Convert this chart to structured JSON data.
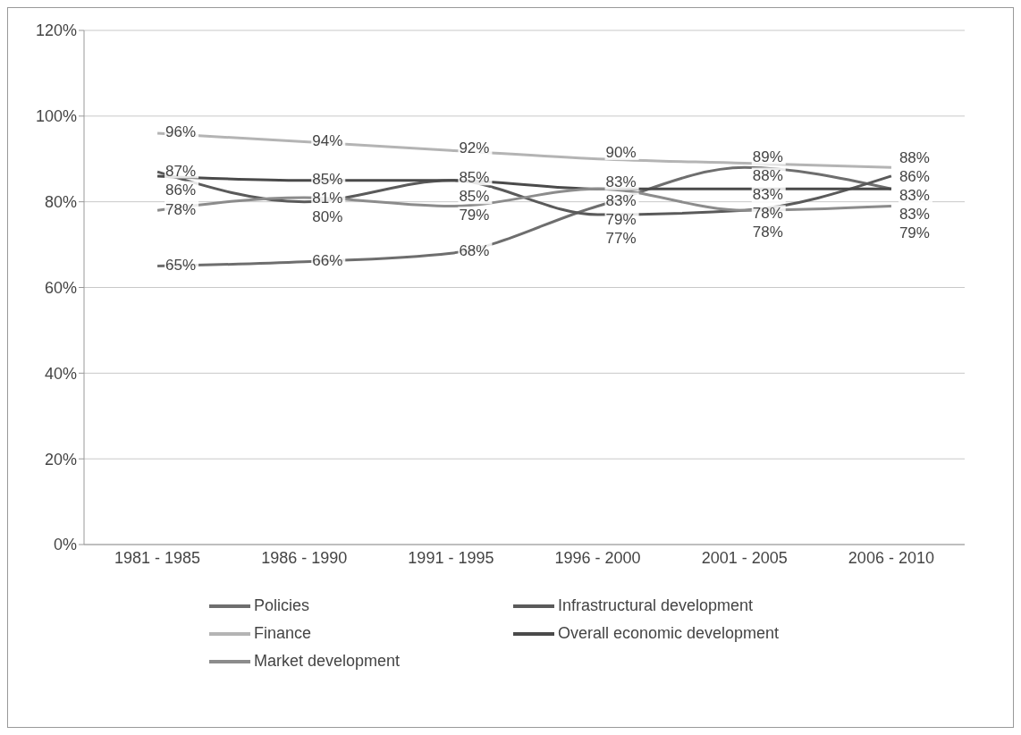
{
  "chart_data": {
    "type": "line",
    "categories": [
      "1981 - 1985",
      "1986 - 1990",
      "1991 - 1995",
      "1996 - 2000",
      "2001 - 2005",
      "2006 - 2010"
    ],
    "series": [
      {
        "name": "Policies",
        "color": "#6e6e6e",
        "values": [
          65,
          66,
          68,
          79,
          88,
          83
        ],
        "value_labels": [
          "65%",
          "66%",
          "68%",
          "79%",
          "88%",
          "83%"
        ]
      },
      {
        "name": "Infrastructural development",
        "color": "#5a5a5a",
        "values": [
          87,
          80,
          85,
          77,
          78,
          86
        ],
        "value_labels": [
          "87%",
          "80%",
          "85%",
          "77%",
          "78%",
          "86%"
        ]
      },
      {
        "name": "Finance",
        "color": "#b4b4b4",
        "values": [
          96,
          94,
          92,
          90,
          89,
          88
        ],
        "value_labels": [
          "96%",
          "94%",
          "92%",
          "90%",
          "89%",
          "88%"
        ]
      },
      {
        "name": "Overall economic development",
        "color": "#4a4a4a",
        "values": [
          86,
          85,
          85,
          83,
          83,
          83
        ],
        "value_labels": [
          "86%",
          "85%",
          "85%",
          "83%",
          "83%",
          "83%"
        ]
      },
      {
        "name": "Market development",
        "color": "#8c8c8c",
        "values": [
          78,
          81,
          79,
          83,
          78,
          79
        ],
        "value_labels": [
          "78%",
          "81%",
          "79%",
          "83%",
          "78%",
          "79%"
        ]
      }
    ],
    "ylim": [
      0,
      120
    ],
    "yticks": [
      {
        "value": 0,
        "label": "0%"
      },
      {
        "value": 20,
        "label": "20%"
      },
      {
        "value": 40,
        "label": "40%"
      },
      {
        "value": 60,
        "label": "60%"
      },
      {
        "value": 80,
        "label": "80%"
      },
      {
        "value": 100,
        "label": "100%"
      },
      {
        "value": 120,
        "label": "120%"
      }
    ],
    "grid": "y",
    "legend": "bottom",
    "marker": "none",
    "line_style": "solid"
  }
}
